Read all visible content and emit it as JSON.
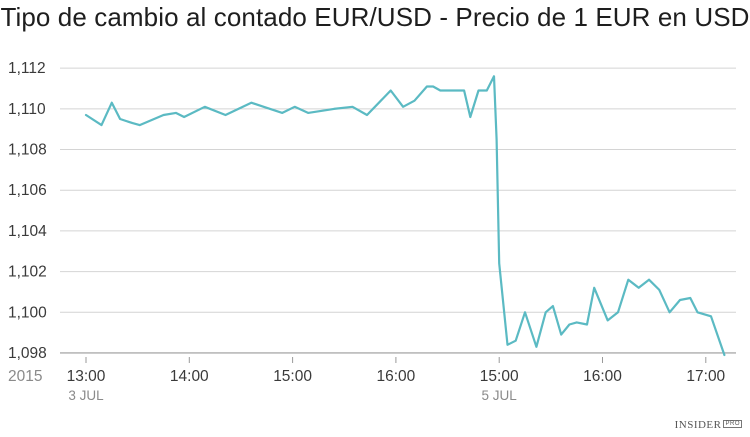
{
  "chart_data": {
    "type": "line",
    "title": "Tipo de cambio al contado EUR/USD - Precio de 1 EUR en USD",
    "xlabel": "",
    "ylabel": "",
    "ylim": [
      1.0978,
      1.1125
    ],
    "yticks": [
      1.098,
      1.1,
      1.102,
      1.104,
      1.106,
      1.108,
      1.11,
      1.112
    ],
    "ytick_labels": [
      "1,098",
      "1,100",
      "1,102",
      "1,104",
      "1,106",
      "1,108",
      "1,110",
      "1,112"
    ],
    "xlim": [
      -0.1,
      6.3
    ],
    "xticks": [
      {
        "x": 0,
        "label": "13:00"
      },
      {
        "x": 1,
        "label": "14:00"
      },
      {
        "x": 2,
        "label": "15:00"
      },
      {
        "x": 3,
        "label": "16:00"
      },
      {
        "x": 4,
        "label": "15:00"
      },
      {
        "x": 5,
        "label": "16:00"
      },
      {
        "x": 6,
        "label": "17:00"
      }
    ],
    "year_label": "2015",
    "date_labels": [
      {
        "x": 0,
        "label": "3 JUL"
      },
      {
        "x": 4,
        "label": "5 JUL"
      }
    ],
    "grid": true,
    "color": "#5bbac3",
    "series": [
      {
        "x": [
          0,
          0.15,
          0.25,
          0.33,
          0.45,
          0.52,
          0.75,
          0.87,
          0.95,
          1.15,
          1.35,
          1.6,
          1.72,
          1.9,
          2.02,
          2.15,
          2.4,
          2.58,
          2.72,
          2.95,
          3.07,
          3.18,
          3.3,
          3.36,
          3.43,
          3.58,
          3.66,
          3.72,
          3.8,
          3.88,
          3.95,
          3.975,
          4.0,
          4.08,
          4.16,
          4.25,
          4.36,
          4.45,
          4.52,
          4.6,
          4.68,
          4.75,
          4.85,
          4.92,
          5.05,
          5.15,
          5.25,
          5.35,
          5.45,
          5.55,
          5.65,
          5.75,
          5.85,
          5.92,
          6.05,
          6.18
        ],
        "y": [
          1.1097,
          1.1092,
          1.1103,
          1.1095,
          1.1093,
          1.1092,
          1.1097,
          1.1098,
          1.1096,
          1.1101,
          1.1097,
          1.1103,
          1.1101,
          1.1098,
          1.1101,
          1.1098,
          1.11,
          1.1101,
          1.1097,
          1.1109,
          1.1101,
          1.1104,
          1.1111,
          1.1111,
          1.1109,
          1.1109,
          1.1109,
          1.1096,
          1.1109,
          1.1109,
          1.1116,
          1.1085,
          1.1024,
          1.0984,
          1.0986,
          1.1,
          1.0983,
          1.1,
          1.1003,
          1.0989,
          1.0994,
          1.0995,
          1.0994,
          1.1012,
          1.0996,
          1.1,
          1.1016,
          1.1012,
          1.1016,
          1.1011,
          1.1,
          1.1006,
          1.1007,
          1.1,
          1.0998,
          1.0979
        ]
      }
    ]
  },
  "brand": {
    "name": "INSIDER",
    "badge": "PRO"
  }
}
